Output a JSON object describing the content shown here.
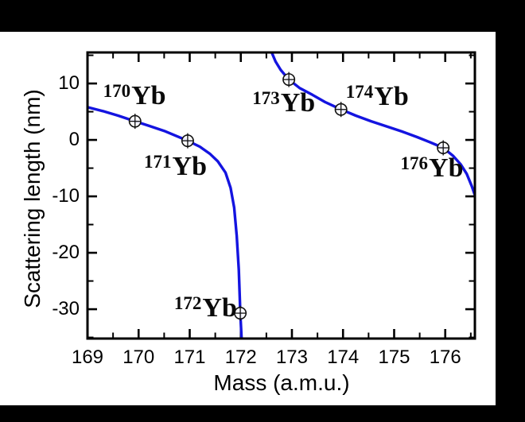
{
  "chart_data": {
    "type": "line",
    "title": "",
    "xlabel": "Mass (a.m.u.)",
    "ylabel": "Scattering length (nm)",
    "xlim": [
      169,
      176.58
    ],
    "ylim": [
      -35.2,
      15.5
    ],
    "x_major_ticks": [
      169,
      170,
      171,
      172,
      173,
      174,
      175,
      176
    ],
    "x_minor_ticks": [
      169.5,
      170.5,
      171.5,
      172.5,
      173.5,
      174.5,
      175.5,
      176.5
    ],
    "y_major_ticks": [
      10,
      0,
      -10,
      -20,
      -30
    ],
    "y_minor_ticks": [
      15,
      5,
      -5,
      -15,
      -25,
      -35
    ],
    "grid": false,
    "legend": "none",
    "curve_color": "#1414e0",
    "axis_color": "#000000",
    "marker_style": "open-circle-with-cross",
    "series": [
      {
        "name": "branch_169_to_172_pole",
        "points": [
          [
            169.0,
            5.8
          ],
          [
            169.3,
            5.1
          ],
          [
            169.6,
            4.3
          ],
          [
            169.93,
            3.3
          ],
          [
            170.2,
            2.5
          ],
          [
            170.5,
            1.6
          ],
          [
            170.96,
            -0.15
          ],
          [
            171.2,
            -1.2
          ],
          [
            171.4,
            -2.5
          ],
          [
            171.55,
            -3.8
          ],
          [
            171.7,
            -5.8
          ],
          [
            171.8,
            -8.5
          ],
          [
            171.87,
            -12
          ],
          [
            171.92,
            -17
          ],
          [
            171.96,
            -23
          ],
          [
            171.99,
            -30.7
          ],
          [
            172.02,
            -36
          ]
        ]
      },
      {
        "name": "branch_172_to_176",
        "points": [
          [
            172.6,
            15.6
          ],
          [
            172.68,
            13.9
          ],
          [
            172.78,
            12.4
          ],
          [
            172.94,
            10.7
          ],
          [
            173.15,
            9.2
          ],
          [
            173.4,
            8.0
          ],
          [
            173.65,
            6.7
          ],
          [
            173.96,
            5.4
          ],
          [
            174.25,
            4.3
          ],
          [
            174.55,
            3.3
          ],
          [
            174.85,
            2.4
          ],
          [
            175.15,
            1.5
          ],
          [
            175.45,
            0.5
          ],
          [
            175.7,
            -0.4
          ],
          [
            175.96,
            -1.4
          ],
          [
            176.15,
            -2.8
          ],
          [
            176.3,
            -4.3
          ],
          [
            176.42,
            -6.0
          ],
          [
            176.52,
            -8.2
          ],
          [
            176.58,
            -9.8
          ]
        ]
      }
    ],
    "isotopes": [
      {
        "sup": "170",
        "element": "Yb",
        "mass": 169.93,
        "value": 3.3,
        "label_mass": 169.92,
        "label_value": 7.8
      },
      {
        "sup": "171",
        "element": "Yb",
        "mass": 170.96,
        "value": -0.15,
        "label_mass": 170.72,
        "label_value": -4.8
      },
      {
        "sup": "172",
        "element": "Yb",
        "mass": 171.99,
        "value": -30.7,
        "label_mass": 171.31,
        "label_value": -29.9
      },
      {
        "sup": "173",
        "element": "Yb",
        "mass": 172.94,
        "value": 10.7,
        "label_mass": 172.84,
        "label_value": 6.5
      },
      {
        "sup": "174",
        "element": "Yb",
        "mass": 173.96,
        "value": 5.4,
        "label_mass": 174.67,
        "label_value": 7.6
      },
      {
        "sup": "176",
        "element": "Yb",
        "mass": 175.96,
        "value": -1.4,
        "label_mass": 175.74,
        "label_value": -5.1
      }
    ]
  }
}
